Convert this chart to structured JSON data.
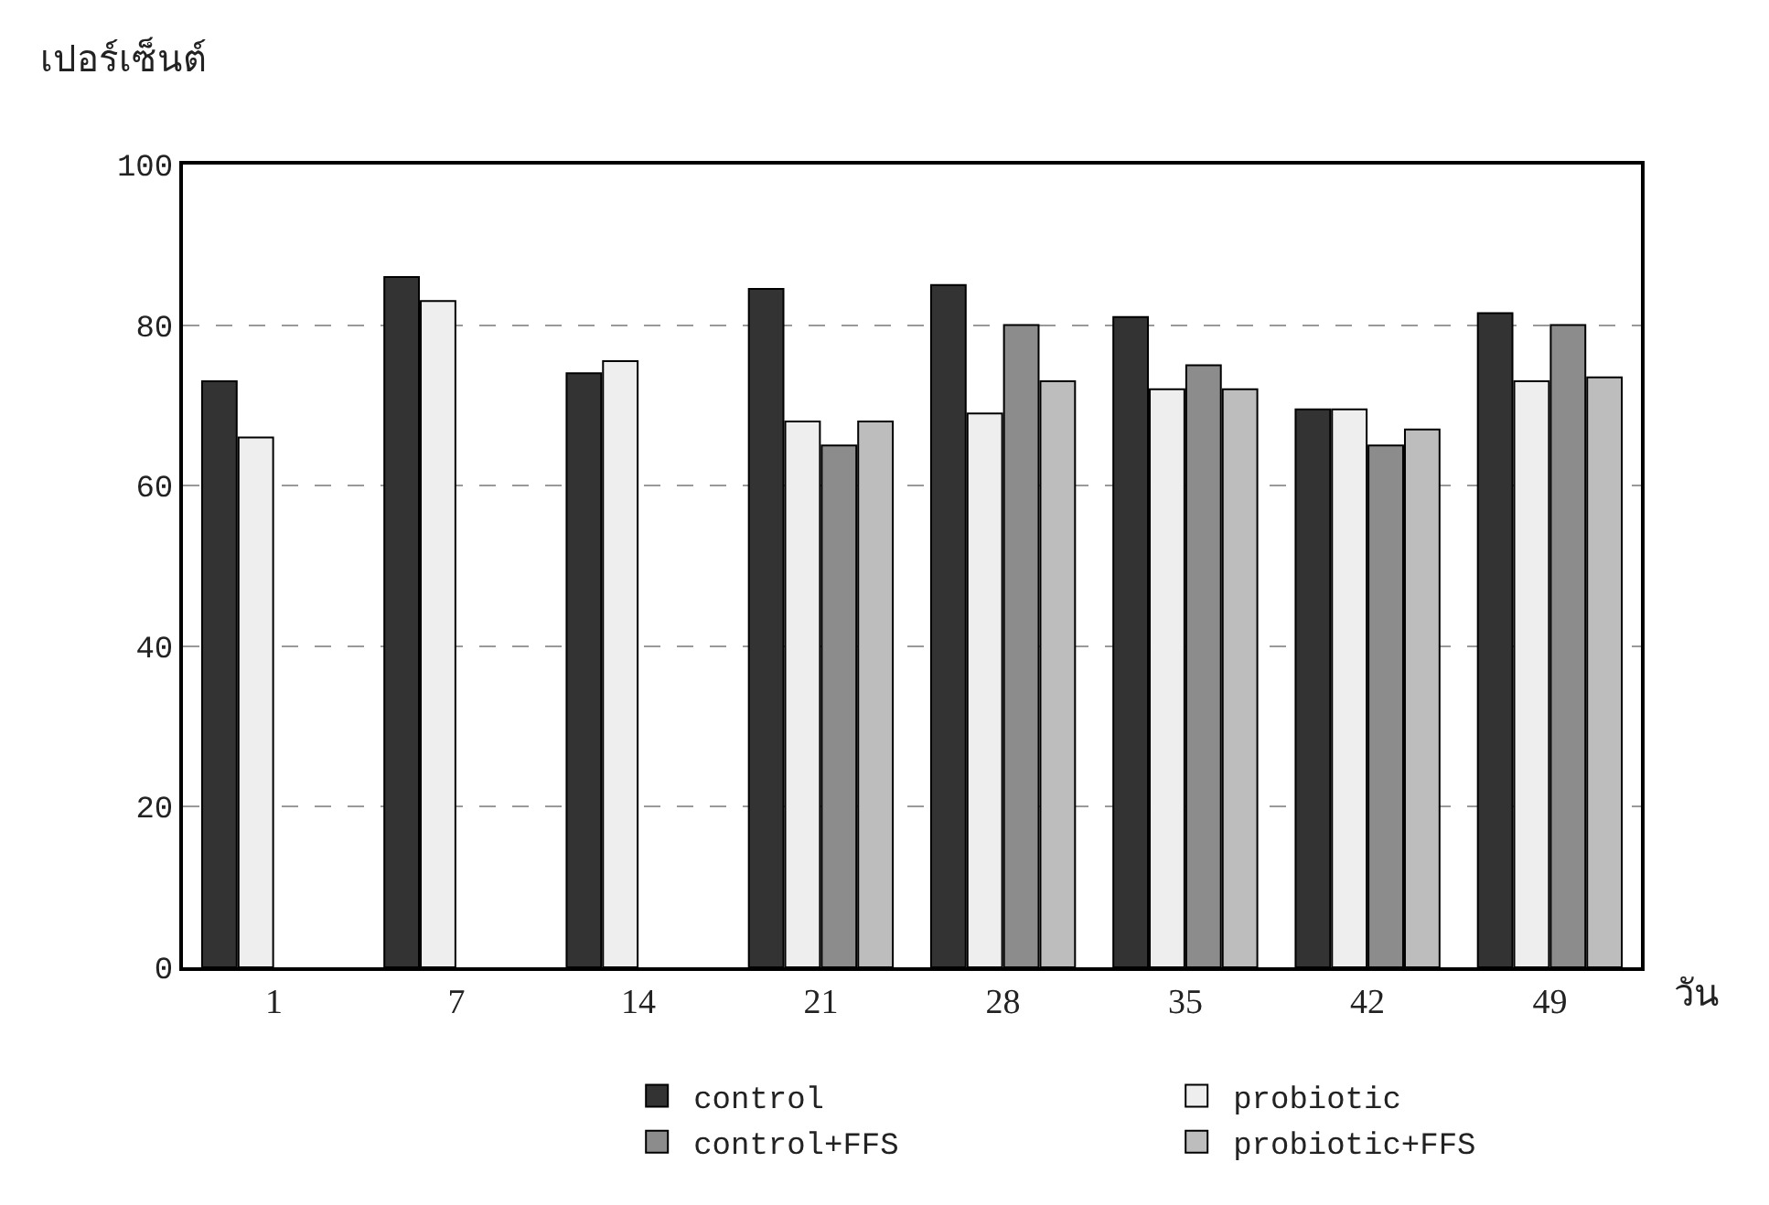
{
  "chart_data": {
    "type": "bar",
    "ylabel": "เปอร์เซ็นต์",
    "xlabel": "วัน",
    "categories": [
      "1",
      "7",
      "14",
      "21",
      "28",
      "35",
      "42",
      "49"
    ],
    "series": [
      {
        "name": "control",
        "color": "#333333",
        "values": [
          73,
          86,
          74,
          84.5,
          85,
          81,
          69.5,
          81.5
        ]
      },
      {
        "name": "probiotic",
        "color": "#eeeeee",
        "values": [
          66,
          83,
          75.5,
          68,
          69,
          72,
          69.5,
          73
        ]
      },
      {
        "name": "control+FFS",
        "color": "#8c8c8c",
        "values": [
          null,
          null,
          null,
          65,
          80,
          75,
          65,
          80
        ]
      },
      {
        "name": "probiotic+FFS",
        "color": "#bdbdbd",
        "values": [
          null,
          null,
          null,
          68,
          73,
          72,
          67,
          73.5
        ]
      }
    ],
    "ylim": [
      0,
      100
    ],
    "yticks": [
      0,
      20,
      40,
      60,
      80,
      100
    ],
    "grid": "y",
    "legend": "bottom"
  }
}
